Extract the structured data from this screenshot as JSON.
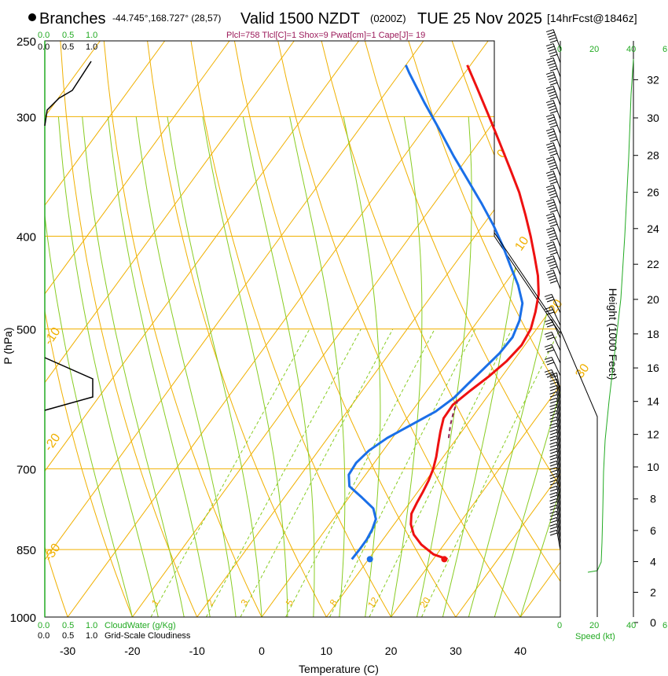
{
  "header": {
    "location_name": "Branches",
    "coords": "-44.745°,168.727° (28,57)",
    "valid": "Valid 1500 NZDT",
    "valid_utc": "(0200Z)",
    "date": "TUE 25 Nov 2025",
    "forecast": "[14hrFcst@1846z]",
    "indices": "Plcl=758 Tlcl[C]=1 Shox=9 Pwat[cm]=1 Cape[J]= 19"
  },
  "colors": {
    "isotherm": "#f0b000",
    "mixing_ratio": "#88cc22",
    "temperature": "#ee1111",
    "dewpoint": "#1a6fe8",
    "parcel": "#8b2252",
    "green_text": "#22aa22",
    "title_indices": "#9b1a5a"
  },
  "chart_data": {
    "type": "skew-t",
    "xlabel": "Temperature (C)",
    "ylabel": "P (hPa)",
    "right_label": "Height (1000 Feet)",
    "x_ticks": [
      -30,
      -20,
      -10,
      0,
      10,
      20,
      30,
      40
    ],
    "x_tick_labels": [
      "-30",
      "-20",
      "-10",
      "0",
      "10",
      "20",
      "30",
      "40"
    ],
    "p_ticks": [
      250,
      300,
      400,
      500,
      700,
      850,
      1000
    ],
    "p_tick_labels": [
      "250",
      "300",
      "400",
      "500",
      "700",
      "850",
      "1000"
    ],
    "height_ticks": [
      0,
      2,
      4,
      6,
      8,
      10,
      12,
      14,
      16,
      18,
      20,
      22,
      24,
      26,
      28,
      30,
      32
    ],
    "height_tick_labels": [
      "0",
      "2",
      "4",
      "6",
      "8",
      "10",
      "12",
      "14",
      "16",
      "18",
      "20",
      "22",
      "24",
      "26",
      "28",
      "30",
      "32"
    ],
    "isotherm_labels": [
      {
        "t": 30,
        "text": "30"
      },
      {
        "t": 20,
        "text": "20"
      },
      {
        "t": 10,
        "text": "10"
      },
      {
        "t": 0,
        "text": "0"
      },
      {
        "t": -10,
        "text": "-10"
      },
      {
        "t": -20,
        "text": "-20"
      },
      {
        "t": -30,
        "text": "-30"
      }
    ],
    "mixing_ratio_labels": [
      "1",
      "2",
      "3",
      "5",
      "8",
      "12",
      "20"
    ],
    "temperature_profile": [
      [
        870,
        22.2
      ],
      [
        860,
        19.5
      ],
      [
        840,
        16.5
      ],
      [
        820,
        14.2
      ],
      [
        800,
        12.6
      ],
      [
        780,
        11.5
      ],
      [
        760,
        11.1
      ],
      [
        740,
        10.8
      ],
      [
        720,
        10.4
      ],
      [
        700,
        9.8
      ],
      [
        680,
        8.9
      ],
      [
        660,
        7.8
      ],
      [
        640,
        6.7
      ],
      [
        620,
        5.7
      ],
      [
        600,
        5.6
      ],
      [
        580,
        6.7
      ],
      [
        560,
        8.0
      ],
      [
        540,
        9.0
      ],
      [
        520,
        9.5
      ],
      [
        500,
        9.1
      ],
      [
        480,
        7.9
      ],
      [
        460,
        6.4
      ],
      [
        440,
        4.2
      ],
      [
        420,
        1.5
      ],
      [
        400,
        -1.4
      ],
      [
        380,
        -4.6
      ],
      [
        360,
        -8.1
      ],
      [
        340,
        -12.2
      ],
      [
        320,
        -16.6
      ],
      [
        300,
        -21.3
      ],
      [
        280,
        -26.4
      ],
      [
        265,
        -30.5
      ]
    ],
    "dewpoint_profile": [
      [
        870,
        7.4
      ],
      [
        850,
        7.5
      ],
      [
        830,
        7.5
      ],
      [
        810,
        7.2
      ],
      [
        790,
        6.6
      ],
      [
        770,
        5.0
      ],
      [
        750,
        2.0
      ],
      [
        730,
        -1.2
      ],
      [
        710,
        -2.6
      ],
      [
        690,
        -2.8
      ],
      [
        670,
        -2.2
      ],
      [
        650,
        -0.8
      ],
      [
        630,
        1.4
      ],
      [
        610,
        3.7
      ],
      [
        590,
        5.0
      ],
      [
        570,
        5.6
      ],
      [
        550,
        6.3
      ],
      [
        530,
        7.0
      ],
      [
        510,
        7.2
      ],
      [
        490,
        6.4
      ],
      [
        470,
        4.9
      ],
      [
        450,
        2.2
      ],
      [
        430,
        -1.1
      ],
      [
        410,
        -4.5
      ],
      [
        390,
        -8.3
      ],
      [
        370,
        -12.6
      ],
      [
        350,
        -17.3
      ],
      [
        330,
        -22.3
      ],
      [
        310,
        -27.4
      ],
      [
        290,
        -32.9
      ],
      [
        270,
        -38.6
      ],
      [
        265,
        -40.0
      ]
    ],
    "surface_temperature": {
      "p": 870,
      "t": 21.7
    },
    "surface_dewpoint": {
      "p": 870,
      "t": 10.2
    },
    "parcel_trace": [
      [
        650,
        8.7
      ],
      [
        630,
        7.5
      ],
      [
        610,
        6.5
      ],
      [
        595,
        5.9
      ]
    ]
  },
  "footer": {
    "cloudwater_scale": [
      "0.0",
      "0.5",
      "1.0"
    ],
    "cloudwater_label": "CloudWater (g/Kg)",
    "cloudiness_scale": [
      "0.0",
      "0.5",
      "1.0"
    ],
    "cloudiness_label": "Grid-Scale Cloudiness",
    "speed_scale": [
      "0",
      "20",
      "40",
      "6"
    ],
    "speed_label": "Speed (kt)"
  }
}
